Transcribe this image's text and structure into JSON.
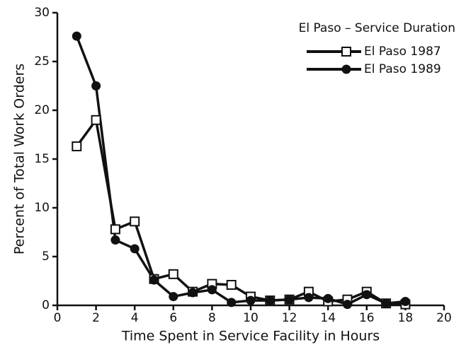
{
  "chart_data": {
    "type": "line",
    "title": "El Paso – Service Duration",
    "x_label": "Time Spent in Service Facility in Hours",
    "y_label": "Percent of Total Work Orders",
    "x": [
      1,
      2,
      3,
      4,
      5,
      6,
      7,
      8,
      9,
      10,
      11,
      12,
      13,
      14,
      15,
      16,
      17,
      18
    ],
    "series": [
      {
        "name": "El Paso 1987",
        "color": "#111111",
        "marker": "square",
        "values": [
          16.3,
          19.0,
          7.8,
          8.6,
          2.7,
          3.2,
          1.4,
          2.2,
          2.1,
          0.9,
          0.5,
          0.6,
          1.4,
          0.4,
          0.6,
          1.4,
          0.2,
          0.1
        ]
      },
      {
        "name": "El Paso 1989",
        "color": "#111111",
        "marker": "circle",
        "values": [
          27.6,
          22.5,
          6.7,
          5.8,
          2.6,
          0.9,
          1.3,
          1.6,
          0.3,
          0.5,
          0.5,
          0.6,
          0.8,
          0.7,
          0.1,
          1.1,
          0.2,
          0.4
        ]
      }
    ],
    "xlim": [
      0,
      20
    ],
    "xticks": [
      0,
      2,
      4,
      6,
      8,
      10,
      12,
      14,
      16,
      18,
      20
    ],
    "ylim": [
      0,
      30
    ],
    "yticks": [
      0,
      5,
      10,
      15,
      20,
      25,
      30
    ],
    "legend": "upper right",
    "grid": false
  }
}
